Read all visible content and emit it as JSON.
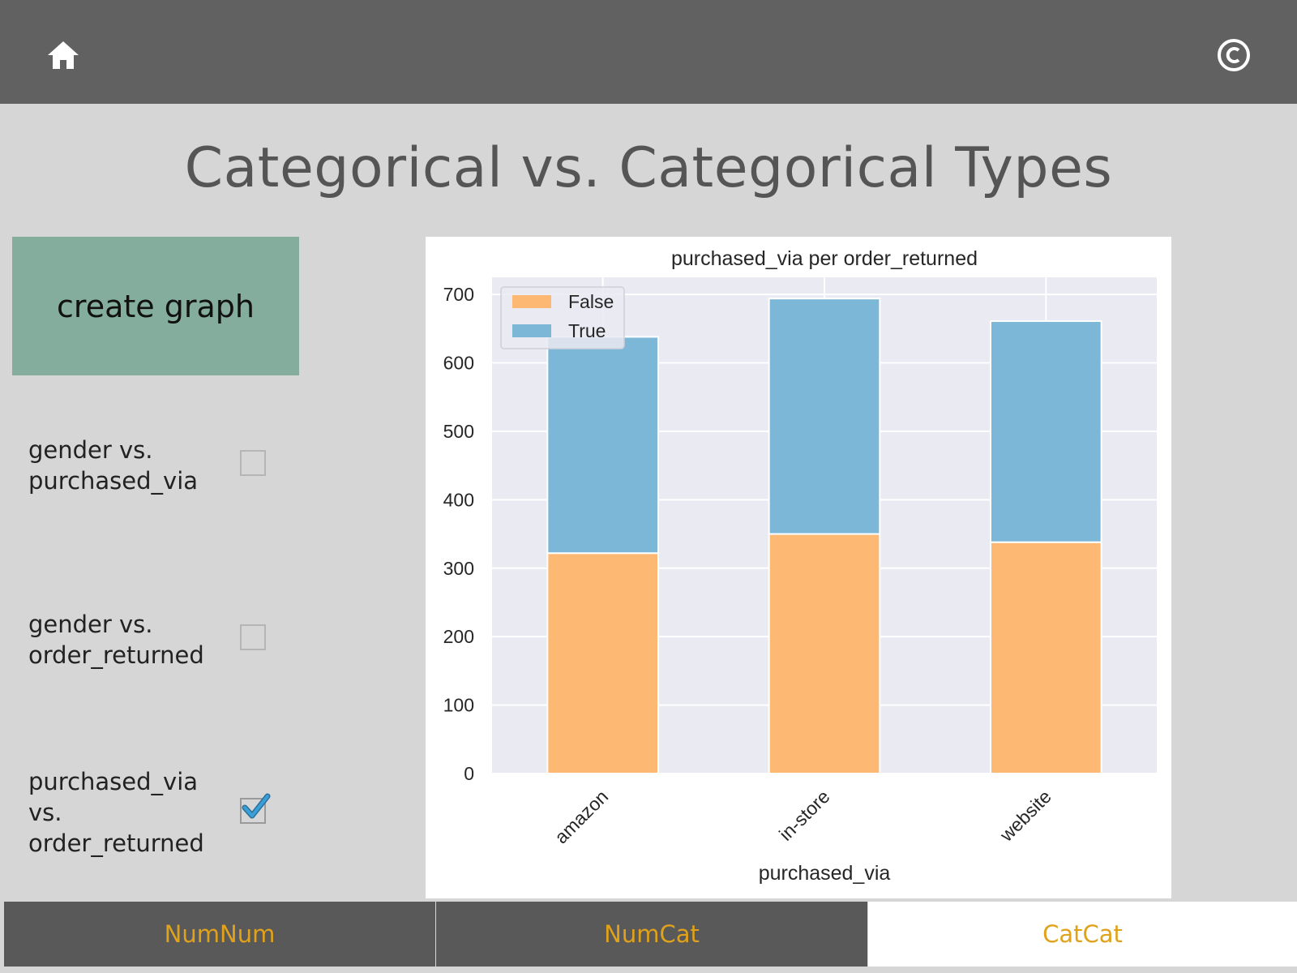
{
  "page": {
    "title": "Categorical vs. Categorical Types"
  },
  "icons": {
    "home": "home-icon",
    "copyright": "copyright-icon",
    "checkmark": "checkmark-icon"
  },
  "actions": {
    "create_graph_label": "create graph"
  },
  "options": [
    {
      "label_line1": "gender vs.",
      "label_line2": "purchased_via",
      "checked": false
    },
    {
      "label_line1": "gender vs.",
      "label_line2": "order_returned",
      "checked": false
    },
    {
      "label_line1": "purchased_via",
      "label_line2": "vs.",
      "label_line3": "order_returned",
      "checked": true
    }
  ],
  "tabs": [
    {
      "label": "NumNum",
      "active": false
    },
    {
      "label": "NumCat",
      "active": false
    },
    {
      "label": "CatCat",
      "active": true
    }
  ],
  "colors": {
    "topbar": "#616161",
    "background": "#d6d6d6",
    "button": "#84ad9e",
    "tab_text": "#e0a21a",
    "tab_inactive": "#595959",
    "series_false": "#fdb974",
    "series_true": "#7db7d7",
    "plot_bg": "#eaeaf2",
    "checkmark": "#3a9fd6"
  },
  "chart_data": {
    "type": "bar",
    "stacked": true,
    "title": "purchased_via per order_returned",
    "xlabel": "purchased_via",
    "ylabel": "",
    "categories": [
      "amazon",
      "in-store",
      "website"
    ],
    "series": [
      {
        "name": "False",
        "values": [
          322,
          350,
          338
        ],
        "color": "#fdb974"
      },
      {
        "name": "True",
        "values": [
          316,
          344,
          323
        ],
        "color": "#7db7d7"
      }
    ],
    "ylim": [
      0,
      725
    ],
    "yticks": [
      0,
      100,
      200,
      300,
      400,
      500,
      600,
      700
    ],
    "grid": true,
    "legend_position": "top-left"
  }
}
